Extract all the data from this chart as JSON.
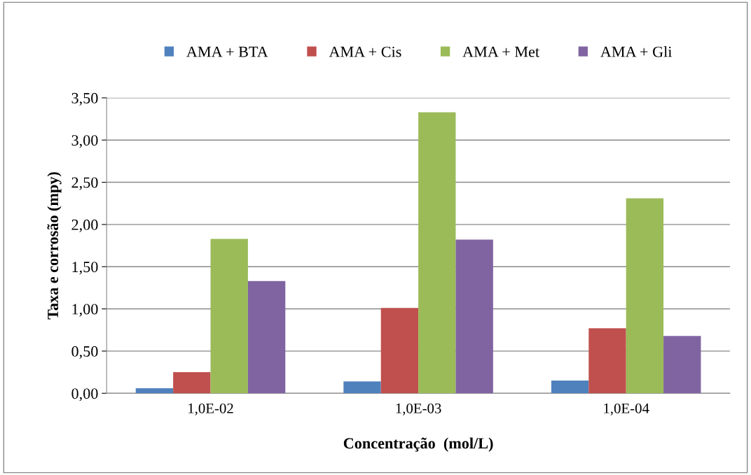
{
  "chart_data": {
    "type": "bar",
    "xlabel": "Concentração  (mol/L)",
    "ylabel": "Taxa e corrosão (mpy)",
    "categories": [
      "1,0E-02",
      "1,0E-03",
      "1,0E-04"
    ],
    "series": [
      {
        "name": "AMA + BTA",
        "color": "#4f81bd",
        "values": [
          0.06,
          0.14,
          0.15
        ]
      },
      {
        "name": "AMA + Cis",
        "color": "#c0504d",
        "values": [
          0.25,
          1.01,
          0.77
        ]
      },
      {
        "name": "AMA + Met",
        "color": "#9bbb59",
        "values": [
          1.83,
          3.33,
          2.31
        ]
      },
      {
        "name": "AMA + Gli",
        "color": "#8064a2",
        "values": [
          1.33,
          1.82,
          0.68
        ]
      }
    ],
    "ylim": [
      0,
      3.5
    ],
    "yticks": [
      {
        "value": 0,
        "label": "0,00"
      },
      {
        "value": 0.5,
        "label": "0,50"
      },
      {
        "value": 1,
        "label": "1,00"
      },
      {
        "value": 1.5,
        "label": "1,50"
      },
      {
        "value": 2,
        "label": "2,00"
      },
      {
        "value": 2.5,
        "label": "2,50"
      },
      {
        "value": 3,
        "label": "3,00"
      },
      {
        "value": 3.5,
        "label": "3,50"
      }
    ],
    "grid": "y",
    "legend": "top"
  }
}
